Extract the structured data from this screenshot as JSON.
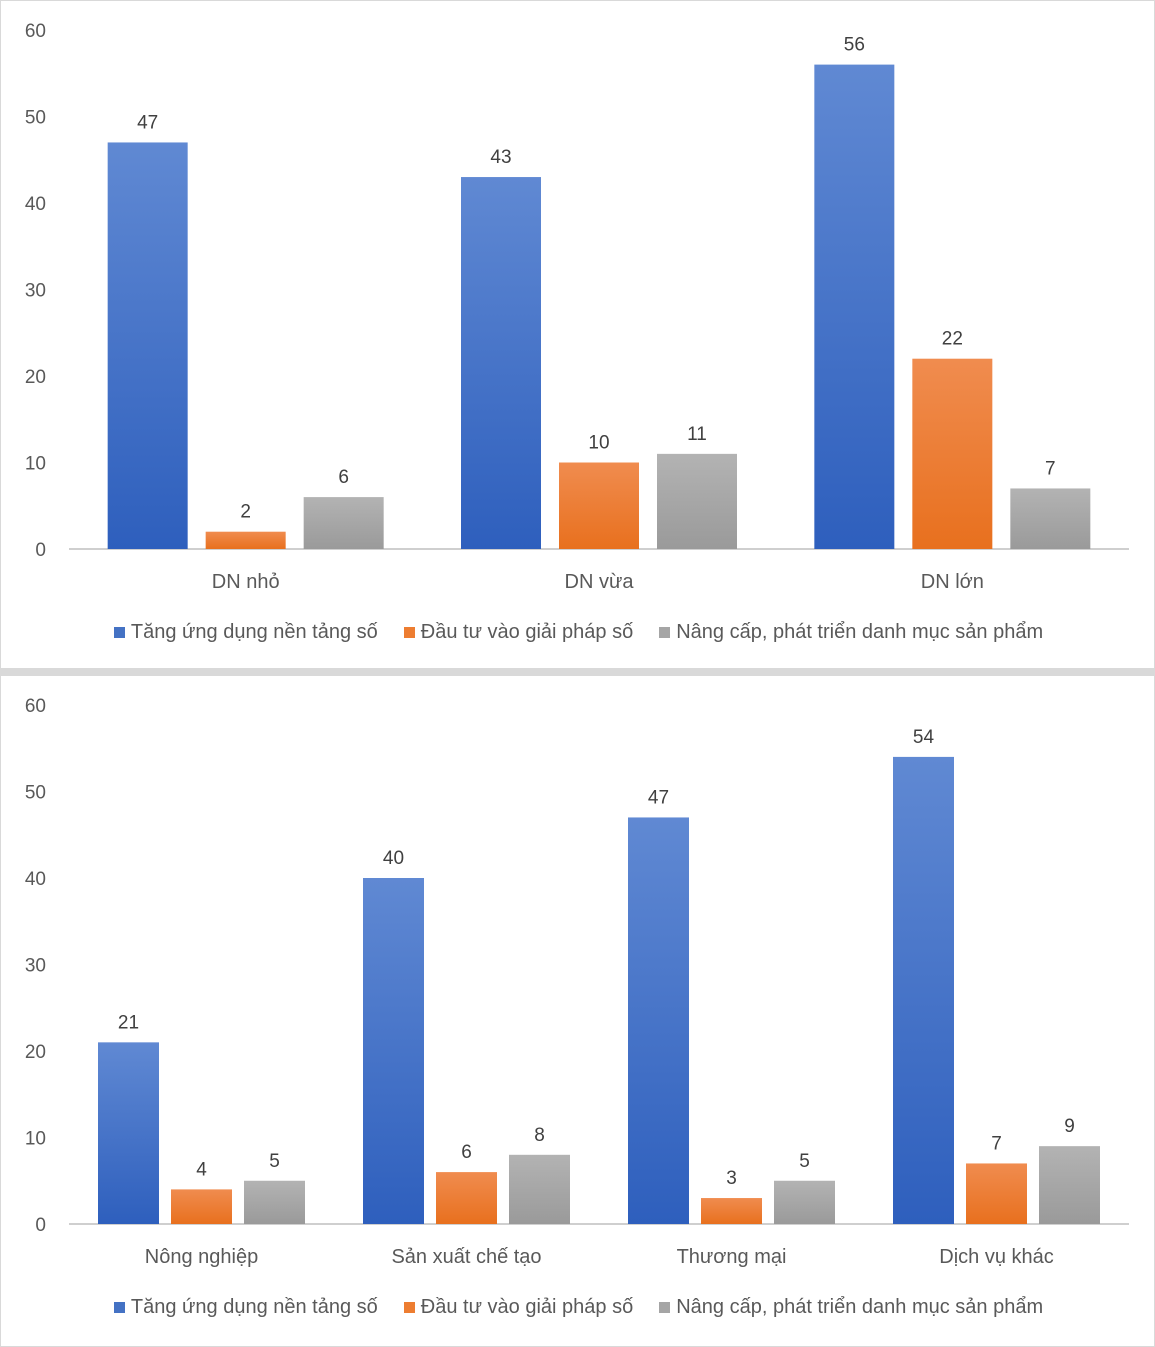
{
  "series_colors": [
    "#4472c4",
    "#ed7d31",
    "#a5a5a5"
  ],
  "legend": [
    "Tăng ứng dụng nền tảng số",
    "Đầu tư vào giải pháp số",
    "Nâng cấp, phát triển danh mục sản phẩm"
  ],
  "chart_data": [
    {
      "type": "bar",
      "categories": [
        "DN nhỏ",
        "DN vừa",
        "DN lớn"
      ],
      "series": [
        {
          "name": "Tăng ứng dụng nền tảng số",
          "values": [
            47,
            43,
            56
          ]
        },
        {
          "name": "Đầu tư vào giải pháp số",
          "values": [
            2,
            10,
            22
          ]
        },
        {
          "name": "Nâng cấp, phát triển danh mục sản phẩm",
          "values": [
            6,
            11,
            7
          ]
        }
      ],
      "ylim": [
        0,
        60
      ],
      "yticks": [
        0,
        10,
        20,
        30,
        40,
        50,
        60
      ],
      "grid": false,
      "legend_position": "bottom"
    },
    {
      "type": "bar",
      "categories": [
        "Nông nghiệp",
        "Sản xuất chế tạo",
        "Thương mại",
        "Dịch vụ khác"
      ],
      "series": [
        {
          "name": "Tăng ứng dụng nền tảng số",
          "values": [
            21,
            40,
            47,
            54
          ]
        },
        {
          "name": "Đầu tư vào giải pháp số",
          "values": [
            4,
            6,
            3,
            7
          ]
        },
        {
          "name": "Nâng cấp, phát triển danh mục sản phẩm",
          "values": [
            5,
            8,
            5,
            9
          ]
        }
      ],
      "ylim": [
        0,
        60
      ],
      "yticks": [
        0,
        10,
        20,
        30,
        40,
        50,
        60
      ],
      "grid": false,
      "legend_position": "bottom"
    }
  ]
}
